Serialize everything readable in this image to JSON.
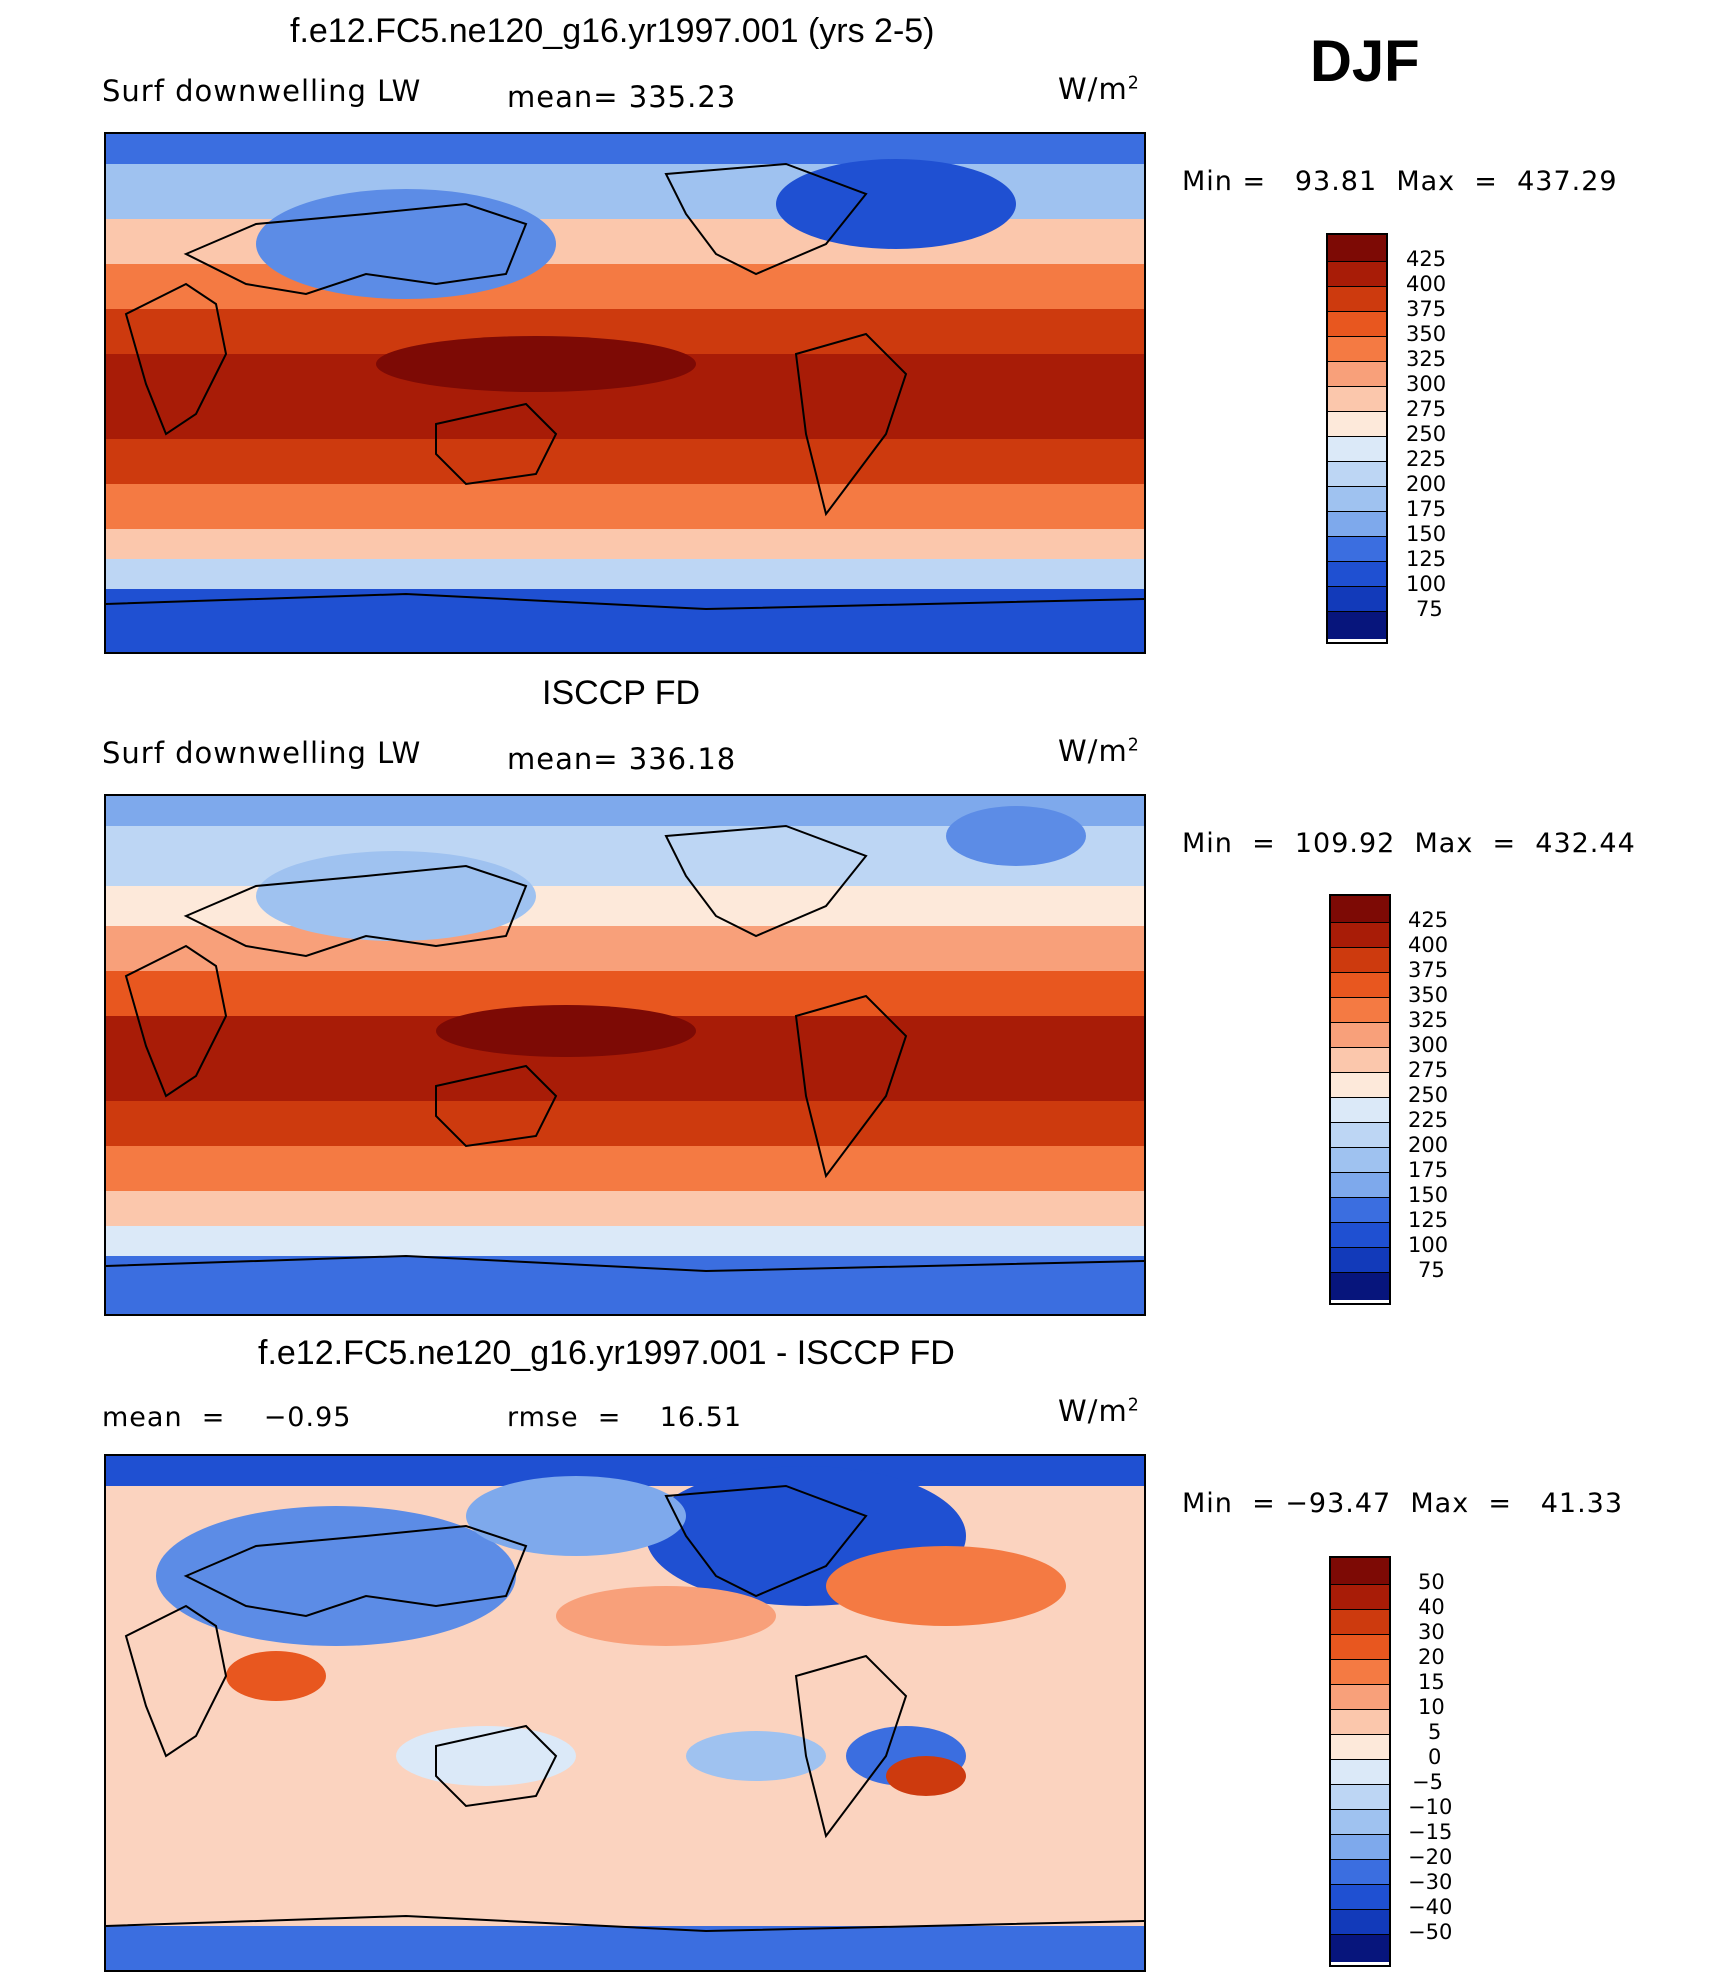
{
  "season": "DJF",
  "colors": {
    "warm": [
      "#7d0a05",
      "#a81c07",
      "#cd3a0e",
      "#e8571f",
      "#f47a43",
      "#f8a07a",
      "#fbc7ac",
      "#fde9da"
    ],
    "cool": [
      "#dbe9f8",
      "#bdd6f4",
      "#9fc2f0",
      "#7ea9ec",
      "#5c8ce6",
      "#3b6ee0",
      "#1f50d2",
      "#123aba",
      "#0a2898",
      "#07157c"
    ],
    "land_outline": "#000000",
    "anomaly_land": "#f8b79a",
    "anomaly_ocean": "#fbd3bf"
  },
  "panels": [
    {
      "title": "f.e12.FC5.ne120_g16.yr1997.001 (yrs 2-5)",
      "left_label": "Surf downwelling LW",
      "center_label": "mean= 335.23",
      "units_base": "W/m",
      "units_exp": "2",
      "minmax": "Min =   93.81  Max  =  437.29",
      "chart_data": {
        "type": "heatmap",
        "variable": "Surf downwelling LW",
        "units": "W/m2",
        "mean": 335.23,
        "min": 93.81,
        "max": 437.29,
        "levels": [
          "425",
          "400",
          "375",
          "350",
          "325",
          "300",
          "275",
          "250",
          "225",
          "200",
          "175",
          "150",
          "125",
          "100",
          "75"
        ],
        "zonal_profile": {
          "lat": [
            80,
            60,
            40,
            20,
            0,
            -20,
            -40,
            -60,
            -75
          ],
          "value": [
            190,
            250,
            320,
            385,
            420,
            390,
            340,
            280,
            140
          ]
        }
      }
    },
    {
      "title": "ISCCP FD",
      "left_label": "Surf downwelling LW",
      "center_label": "mean= 336.18",
      "units_base": "W/m",
      "units_exp": "2",
      "minmax": "Min  =  109.92  Max  =  432.44",
      "chart_data": {
        "type": "heatmap",
        "variable": "Surf downwelling LW",
        "units": "W/m2",
        "mean": 336.18,
        "min": 109.92,
        "max": 432.44,
        "levels": [
          "425",
          "400",
          "375",
          "350",
          "325",
          "300",
          "275",
          "250",
          "225",
          "200",
          "175",
          "150",
          "125",
          "100",
          "75"
        ],
        "zonal_profile": {
          "lat": [
            80,
            60,
            40,
            20,
            0,
            -20,
            -40,
            -60,
            -75
          ],
          "value": [
            210,
            255,
            315,
            380,
            415,
            385,
            335,
            275,
            150
          ]
        }
      }
    },
    {
      "title": "f.e12.FC5.ne120_g16.yr1997.001 - ISCCP FD",
      "left_label": "mean  =    −0.95",
      "center_label": "rmse  =    16.51",
      "units_base": "W/m",
      "units_exp": "2",
      "minmax": "Min  = −93.47  Max  =   41.33",
      "chart_data": {
        "type": "heatmap",
        "variable": "Surf downwelling LW difference",
        "units": "W/m2",
        "mean": -0.95,
        "rmse": 16.51,
        "min": -93.47,
        "max": 41.33,
        "levels": [
          "50",
          "40",
          "30",
          "20",
          "15",
          "10",
          "5",
          "0",
          "−5",
          "−10",
          "−15",
          "−20",
          "−30",
          "−40",
          "−50"
        ]
      }
    }
  ]
}
